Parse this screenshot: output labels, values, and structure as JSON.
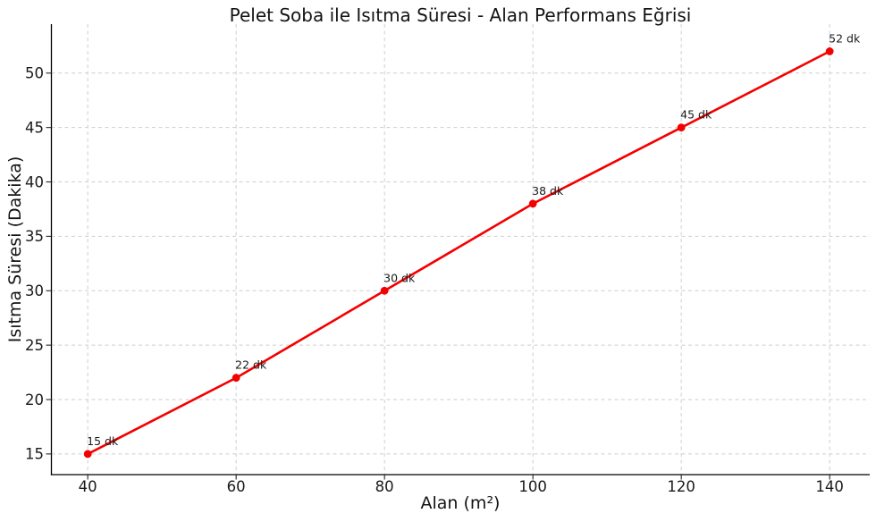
{
  "figure": {
    "background": "#ffffff"
  },
  "chart_data": {
    "type": "line",
    "title": "Pelet Soba ile Isıtma Süresi - Alan Performans Eğrisi",
    "xlabel": "Alan (m²)",
    "ylabel": "Isıtma Süresi (Dakika)",
    "x": [
      40,
      60,
      80,
      100,
      120,
      140
    ],
    "series": [
      {
        "values": [
          15,
          22,
          30,
          38,
          45,
          52
        ],
        "color": "#f40000",
        "marker": "circle",
        "point_labels": [
          "15 dk",
          "22 dk",
          "30 dk",
          "38 dk",
          "45 dk",
          "52 dk"
        ]
      }
    ],
    "xticks": [
      40,
      60,
      80,
      100,
      120,
      140
    ],
    "yticks": [
      15,
      20,
      25,
      30,
      35,
      40,
      45,
      50
    ],
    "xlim": [
      35.1,
      145.4
    ],
    "ylim": [
      13.1,
      54.5
    ],
    "grid": true,
    "grid_style": "dashed",
    "grid_color": "#cecece",
    "axis_color": "#000000",
    "tick_color": "#262626",
    "text_color": "#1a1a1a",
    "legend": false
  }
}
